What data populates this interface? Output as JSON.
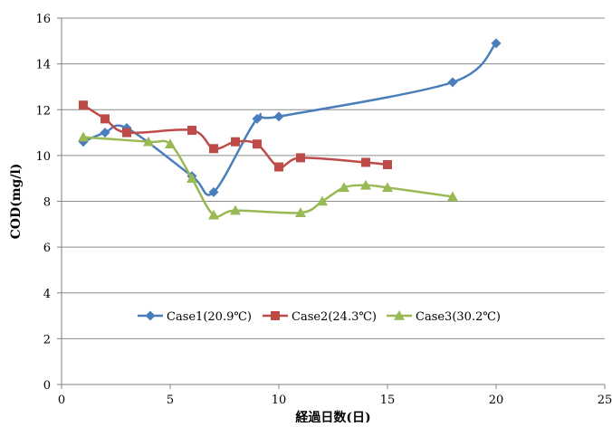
{
  "chart_data": {
    "type": "line",
    "title": "",
    "xlabel": "経過日数(日)",
    "ylabel": "COD(mg/l)",
    "xlim": [
      0,
      25
    ],
    "ylim": [
      0,
      16
    ],
    "x_ticks": [
      0,
      5,
      10,
      15,
      20,
      25
    ],
    "y_ticks": [
      0,
      2,
      4,
      6,
      8,
      10,
      12,
      14,
      16
    ],
    "grid": "horizontal",
    "legend_position": "inside-lower-center",
    "series": [
      {
        "name": "Case1(20.9℃)",
        "color": "#4a7ebb",
        "marker": "diamond",
        "x": [
          1,
          2,
          3,
          6,
          7,
          9,
          10,
          18,
          20
        ],
        "y": [
          10.6,
          11.0,
          11.2,
          9.1,
          8.4,
          11.6,
          11.7,
          13.2,
          14.9
        ]
      },
      {
        "name": "Case2(24.3℃)",
        "color": "#be4b48",
        "marker": "square",
        "x": [
          1,
          2,
          3,
          6,
          7,
          8,
          9,
          10,
          11,
          14,
          15
        ],
        "y": [
          12.2,
          11.6,
          11.0,
          11.1,
          10.3,
          10.6,
          10.5,
          9.5,
          9.9,
          9.7,
          9.6
        ]
      },
      {
        "name": "Case3(30.2℃)",
        "color": "#98b954",
        "marker": "triangle",
        "x": [
          1,
          4,
          5,
          6,
          7,
          8,
          11,
          12,
          13,
          14,
          15,
          18
        ],
        "y": [
          10.8,
          10.6,
          10.5,
          9.0,
          7.4,
          7.6,
          7.5,
          8.0,
          8.6,
          8.7,
          8.6,
          8.2
        ]
      }
    ]
  }
}
